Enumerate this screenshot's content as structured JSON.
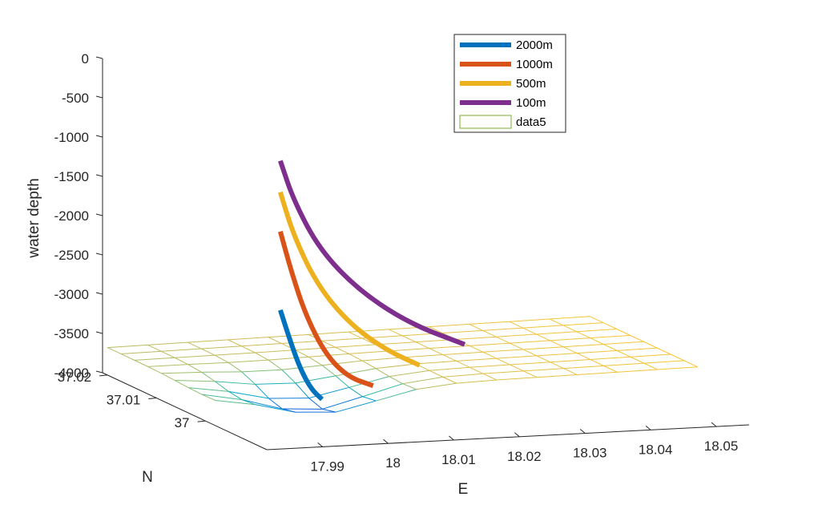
{
  "chart_data": {
    "type": "line",
    "subtype": "3d-line-with-mesh",
    "zlabel": "water depth",
    "xlabel": "E",
    "ylabel": "N",
    "x_ticks": [
      "17.99",
      "18",
      "18.01",
      "18.02",
      "18.03",
      "18.04",
      "18.05"
    ],
    "x_tick_values": [
      17.99,
      18,
      18.01,
      18.02,
      18.03,
      18.04,
      18.05
    ],
    "y_ticks": [
      "37",
      "37.01",
      "37.02"
    ],
    "y_tick_values": [
      37,
      37.01,
      37.02
    ],
    "z_ticks": [
      "0",
      "-500",
      "-1000",
      "-1500",
      "-2000",
      "-2500",
      "-3000",
      "-3500",
      "-4000"
    ],
    "z_tick_values": [
      0,
      -500,
      -1000,
      -1500,
      -2000,
      -2500,
      -3000,
      -3500,
      -4000
    ],
    "zlim": [
      -4000,
      0
    ],
    "grid": false,
    "legend_position": "top-right",
    "series": [
      {
        "name": "2000m",
        "color": "#0072BD",
        "points": [
          [
            17.9932,
            37.0004,
            -2650
          ],
          [
            17.9954,
            37.0012,
            -3100
          ],
          [
            17.9981,
            37.0028,
            -3500
          ],
          [
            18.0007,
            37.0041,
            -3800
          ],
          [
            18.0027,
            37.0046,
            -3950
          ]
        ]
      },
      {
        "name": "1000m",
        "color": "#D95319",
        "points": [
          [
            17.9932,
            37.0004,
            -1650
          ],
          [
            17.9955,
            37.0012,
            -2200
          ],
          [
            17.9987,
            37.0026,
            -2800
          ],
          [
            18.0026,
            37.0038,
            -3350
          ],
          [
            18.0066,
            37.0046,
            -3680
          ],
          [
            18.0107,
            37.0049,
            -3820
          ]
        ]
      },
      {
        "name": "500m",
        "color": "#EDB120",
        "points": [
          [
            17.9932,
            37.0004,
            -1150
          ],
          [
            17.996,
            37.0014,
            -1750
          ],
          [
            18.0009,
            37.0031,
            -2450
          ],
          [
            18.0067,
            37.0043,
            -3000
          ],
          [
            18.0128,
            37.005,
            -3380
          ],
          [
            18.018,
            37.0052,
            -3600
          ]
        ]
      },
      {
        "name": "100m",
        "color": "#7E2F8E",
        "points": [
          [
            17.9932,
            37.0004,
            -750
          ],
          [
            17.996,
            37.0014,
            -1300
          ],
          [
            18.0013,
            37.0032,
            -2000
          ],
          [
            18.0085,
            37.0047,
            -2600
          ],
          [
            18.0169,
            37.0057,
            -3080
          ],
          [
            18.0257,
            37.0063,
            -3400
          ]
        ]
      },
      {
        "name": "data5",
        "type": "mesh",
        "color": "#77AC30",
        "colormap": "parula",
        "depth_range": [
          -4000,
          -3500
        ]
      }
    ]
  }
}
